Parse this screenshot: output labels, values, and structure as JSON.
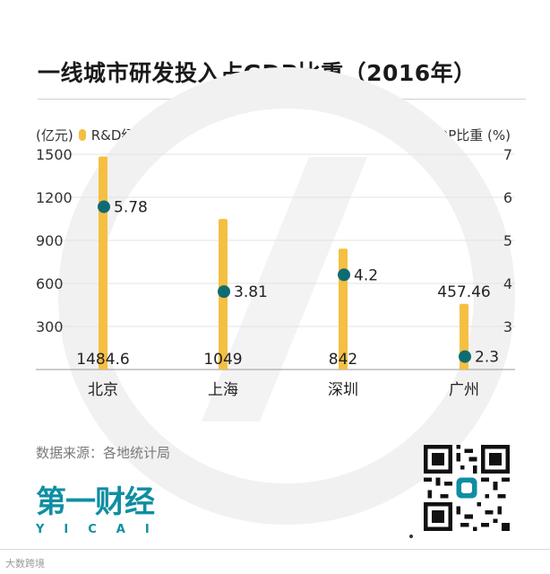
{
  "title": "一线城市研发投入占GDP比重（2016年）",
  "legend": {
    "left_unit": "(亿元)",
    "left_series": "R&D经费",
    "right_series": "占GDP比重 (%)"
  },
  "source": "数据来源：各地统计局",
  "logo": {
    "main": "第一财经",
    "sub": "YICAI"
  },
  "watermark": "大数跨境",
  "colors": {
    "bar": "#f5bf42",
    "dot": "#0f6b72",
    "accent": "#0f8ea2"
  },
  "chart_data": {
    "type": "bar",
    "categories": [
      "北京",
      "上海",
      "深圳",
      "广州"
    ],
    "series": [
      {
        "name": "R&D经费",
        "axis": "left",
        "unit": "亿元",
        "values": [
          1484.6,
          1049,
          842,
          457.46
        ],
        "labels": [
          "1484.6",
          "1049",
          "842",
          "457.46"
        ]
      },
      {
        "name": "占GDP比重",
        "axis": "right",
        "unit": "%",
        "values": [
          5.78,
          3.81,
          4.2,
          2.3
        ],
        "labels": [
          "5.78",
          "3.81",
          "4.2",
          "2.3"
        ]
      }
    ],
    "y_left": {
      "range": [
        0,
        1500
      ],
      "ticks": [
        "1500",
        "1200",
        "900",
        "600",
        "300"
      ]
    },
    "y_right": {
      "range": [
        2,
        7
      ],
      "ticks": [
        "7",
        "6",
        "5",
        "4",
        "3"
      ]
    },
    "grid": true
  }
}
